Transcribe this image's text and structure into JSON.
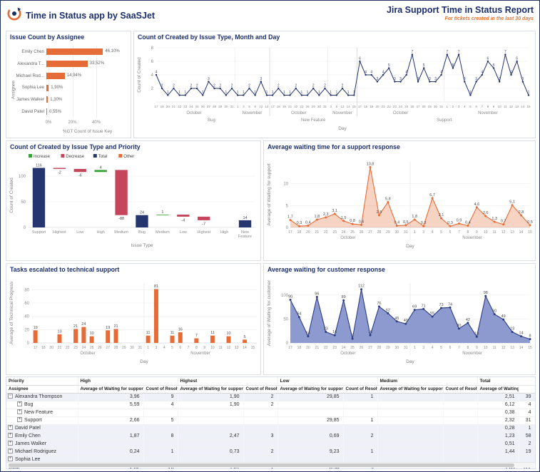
{
  "header": {
    "app_title": "Time in Status app by SaaSJet",
    "report_title": "Jira Support Time in Status Report",
    "report_subtitle": "For tickets created in the last 30 days"
  },
  "colors": {
    "navy": "#24356F",
    "orange": "#E66C37",
    "green": "#37A037",
    "red": "#C4455C",
    "area_fill_blue": "#8D9ACF",
    "area_line_blue": "#2C3C85",
    "title_text": "#1B2F6E"
  },
  "chart_data": [
    {
      "id": "assignee",
      "type": "bar",
      "orientation": "horizontal",
      "title": "Issue Count by Assignee",
      "categories": [
        "Emily Chen",
        "Alexandra T...",
        "Michael Rod...",
        "Sophia Lee",
        "James Walker",
        "David Patel"
      ],
      "values": [
        46.1,
        33.52,
        14.94,
        1.9,
        1.3,
        0.55
      ],
      "labels": [
        "46,10%",
        "33,52%",
        "14,94%",
        "1,90%",
        "1,30%",
        "0,55%"
      ],
      "xlabel": "%GT Count of Issue Key",
      "ylabel": "Assignee",
      "xticks": [
        0,
        20,
        40
      ],
      "xtick_labels": [
        "0%",
        "20%",
        "40%"
      ],
      "xlim": [
        0,
        65
      ]
    },
    {
      "id": "created",
      "type": "line",
      "title": "Count of Created by Issue Type, Month and Day",
      "xlabel": "Day",
      "ylabel": "Count of Created",
      "ylim": [
        0,
        8
      ],
      "yticks": [
        2,
        4,
        6,
        8
      ],
      "groups": [
        {
          "label": "Bug",
          "months": [
            {
              "label": "October",
              "days": [
                17,
                18,
                20,
                21,
                22,
                23,
                24,
                25,
                26,
                27,
                28,
                29,
                30,
                31
              ],
              "values": [
                4,
                2,
                1,
                2,
                1,
                1,
                2,
                2,
                1,
                3,
                2,
                2,
                1,
                2
              ]
            },
            {
              "label": "November",
              "days": [
                1,
                3,
                5,
                8,
                12,
                14
              ],
              "values": [
                1,
                1,
                2,
                1,
                3,
                1
              ]
            }
          ]
        },
        {
          "label": "New Feature",
          "months": [
            {
              "label": "October",
              "days": [
                17,
                18,
                19,
                21,
                22,
                23,
                26,
                29,
                30,
                31
              ],
              "values": [
                1,
                2,
                1,
                1,
                2,
                1,
                1,
                2,
                1,
                2
              ]
            },
            {
              "label": "November",
              "days": [
                3,
                6,
                13,
                14,
                15
              ],
              "values": [
                1,
                1,
                2,
                1,
                1
              ]
            }
          ]
        },
        {
          "label": "Support",
          "months": [
            {
              "label": "October",
              "days": [
                17,
                18,
                19,
                20,
                21,
                22,
                23,
                24,
                25,
                26,
                27,
                28,
                29,
                30,
                31
              ],
              "values": [
                6,
                4,
                4,
                3,
                4,
                5,
                3,
                3,
                4,
                7,
                3,
                5,
                3,
                3,
                4
              ]
            },
            {
              "label": "November",
              "days": [
                1,
                2,
                3,
                4,
                5,
                6,
                7,
                8,
                9,
                10,
                11,
                12,
                13,
                14,
                15
              ],
              "values": [
                7,
                5,
                7,
                3,
                1,
                3,
                4,
                6,
                5,
                3,
                7,
                4,
                6,
                3,
                1
              ]
            }
          ]
        }
      ]
    },
    {
      "id": "priority_waterfall",
      "type": "waterfall",
      "title": "Count of Created by Issue Type and Priority",
      "xlabel": "Issue Type",
      "ylabel": "Count of Created",
      "ylim": [
        0,
        125
      ],
      "yticks": [
        0,
        50,
        100
      ],
      "legend": [
        {
          "label": "Increase",
          "color_key": "green"
        },
        {
          "label": "Decrease",
          "color_key": "red"
        },
        {
          "label": "Total",
          "color_key": "navy"
        },
        {
          "label": "Other",
          "color_key": "orange"
        }
      ],
      "categories": [
        "Support",
        "Highest",
        "Low",
        "High",
        "Medium",
        "Bug",
        "Medium",
        "Low",
        "Highest",
        "High",
        "New Feature"
      ],
      "values": [
        116,
        -2,
        -6,
        4,
        -88,
        24,
        1,
        -4,
        -7,
        0,
        14
      ],
      "kinds": [
        "total",
        "decrease",
        "decrease",
        "increase",
        "decrease",
        "total",
        "increase",
        "decrease",
        "decrease",
        "other",
        "total"
      ],
      "labels": [
        "116",
        "-2",
        "-6",
        "4",
        "-88",
        "24",
        "1",
        "-4",
        "-7",
        "",
        "14"
      ]
    },
    {
      "id": "support_wait",
      "type": "area",
      "title": "Average waiting time for a support response",
      "xlabel": "Day",
      "ylabel": "Average of Waiting for support",
      "ylim": [
        0,
        15
      ],
      "yticks": [
        0,
        5,
        10
      ],
      "months": [
        {
          "label": "October",
          "days": [
            17,
            18,
            20,
            21,
            22,
            23,
            24,
            25,
            26,
            27,
            28,
            29,
            30,
            31
          ],
          "values": [
            1.7,
            0.3,
            0.4,
            1.8,
            2.3,
            3.1,
            1.5,
            0.8,
            0.6,
            13.8,
            2.8,
            5.8,
            0.4,
            0.5
          ]
        },
        {
          "label": "November",
          "days": [
            1,
            3,
            4,
            5,
            6,
            7,
            8,
            9,
            10,
            11,
            12,
            13,
            14,
            15
          ],
          "values": [
            1.8,
            0.3,
            6.7,
            2.1,
            0.3,
            0.9,
            0.4,
            4.6,
            2.6,
            1.3,
            0.7,
            5.1,
            2.8,
            0.5
          ]
        }
      ],
      "labels": [
        "1,7",
        "0,3",
        "0,4",
        "1,8",
        "2,3",
        "3,1",
        "1,5",
        "0,8",
        "0,6",
        "13,8",
        "2,8",
        "5,8",
        "0,4",
        "0,5",
        "1,8",
        "0,3",
        "6,7",
        "2,1",
        "0,3",
        "0,9",
        "0,4",
        "4,6",
        "2,6",
        "1,3",
        "0,7",
        "5,1",
        "2,8",
        "0,5"
      ]
    },
    {
      "id": "technical",
      "type": "column",
      "title": "Tasks escalated to technical support",
      "xlabel": "Day",
      "ylabel": "Average of Technical Progress",
      "ylim": [
        0,
        90
      ],
      "yticks": [
        0,
        20,
        40,
        60,
        80
      ],
      "months": [
        {
          "label": "October",
          "days": [
            17,
            18,
            20,
            21,
            22,
            23,
            24,
            25,
            26,
            27,
            28,
            29,
            30,
            31
          ],
          "values": [
            19,
            null,
            null,
            13,
            null,
            21,
            24,
            10,
            null,
            19,
            21,
            null,
            null,
            null
          ]
        },
        {
          "label": "November",
          "days": [
            1,
            3,
            4,
            5,
            6,
            7,
            8,
            9,
            10,
            11,
            12,
            13,
            14,
            15
          ],
          "values": [
            11,
            81,
            null,
            11,
            16,
            null,
            7,
            null,
            11,
            null,
            10,
            null,
            5,
            null
          ]
        }
      ]
    },
    {
      "id": "customer_wait",
      "type": "area",
      "title": "Average waiting for customer response",
      "xlabel": "Day",
      "ylabel": "Average of Waiting for customer",
      "ylim": [
        0,
        125
      ],
      "yticks": [
        0,
        50,
        100
      ],
      "months": [
        {
          "label": "October",
          "days": [
            17,
            18,
            20,
            21,
            22,
            23,
            24,
            25,
            26,
            27,
            28,
            29,
            30,
            31
          ],
          "values": [
            90,
            54,
            14,
            96,
            23,
            16,
            89,
            9,
            112,
            16,
            76,
            62,
            45,
            40
          ]
        },
        {
          "label": "November",
          "days": [
            1,
            3,
            4,
            5,
            6,
            7,
            8,
            9,
            10,
            11,
            12,
            13,
            14,
            15
          ],
          "values": [
            69,
            71,
            55,
            73,
            74,
            30,
            42,
            13,
            98,
            60,
            49,
            23,
            14,
            8
          ]
        }
      ],
      "labels": [
        "90",
        "54",
        "14",
        "96",
        "23",
        "16",
        "89",
        "9",
        "112",
        "16",
        "76",
        "62",
        "45",
        "40",
        "69",
        "71",
        "55",
        "73",
        "74",
        "30",
        "42",
        "13",
        "98",
        "60",
        "49",
        "23",
        "14",
        "8"
      ]
    }
  ],
  "matrix": {
    "corner_row1": "Priority",
    "corner_row2": "Assignee",
    "groups": [
      {
        "label": "High",
        "cols": [
          "Average of Waiting for support",
          "Count of Resolved"
        ]
      },
      {
        "label": "Highest",
        "cols": [
          "Average of Waiting for support",
          "Count of Resolved"
        ]
      },
      {
        "label": "Low",
        "cols": [
          "Average of Waiting for support",
          "Count of Resolved"
        ]
      },
      {
        "label": "Medium",
        "cols": [
          "Average of Waiting for support",
          "Count of Resolved"
        ]
      },
      {
        "label": "Total",
        "cols": [
          "Average of Waiting for support",
          ""
        ]
      }
    ],
    "rows": [
      {
        "name": "Alexandra Thompson",
        "level": 0,
        "expander": "minus",
        "cells": [
          "3,96",
          "9",
          "1,90",
          "2",
          "29,85",
          "1",
          "",
          "",
          "2,51",
          "39"
        ]
      },
      {
        "name": "Bug",
        "level": 1,
        "expander": "plus",
        "cells": [
          "5,59",
          "4",
          "1,90",
          "2",
          "",
          "",
          "",
          "",
          "6,12",
          "4"
        ]
      },
      {
        "name": "New Feature",
        "level": 1,
        "expander": "plus",
        "cells": [
          "",
          "",
          "",
          "",
          "",
          "",
          "",
          "",
          "0,38",
          "4"
        ]
      },
      {
        "name": "Support",
        "level": 1,
        "expander": "plus",
        "cells": [
          "2,66",
          "5",
          "",
          "",
          "29,85",
          "1",
          "",
          "",
          "2,32",
          "31"
        ]
      },
      {
        "name": "David Patel",
        "level": 0,
        "expander": "plus",
        "cells": [
          "",
          "",
          "",
          "",
          "",
          "",
          "",
          "",
          "0,28",
          "1"
        ]
      },
      {
        "name": "Emily Chen",
        "level": 0,
        "expander": "plus",
        "cells": [
          "1,87",
          "8",
          "2,47",
          "3",
          "0,69",
          "2",
          "",
          "",
          "1,23",
          "58"
        ]
      },
      {
        "name": "James Walker",
        "level": 0,
        "expander": "plus",
        "cells": [
          "",
          "",
          "",
          "",
          "",
          "",
          "",
          "",
          "0,51",
          "2"
        ]
      },
      {
        "name": "Michael Rodriguez",
        "level": 0,
        "expander": "plus",
        "cells": [
          "0,24",
          "1",
          "0,73",
          "2",
          "9,23",
          "1",
          "",
          "",
          "1,44",
          "19"
        ]
      },
      {
        "name": "Sophia Lee",
        "level": 0,
        "expander": "plus",
        "clipped": true,
        "cells": [
          "",
          "",
          "",
          "",
          "",
          "",
          "",
          "",
          "",
          ""
        ]
      }
    ],
    "total_row": {
      "name": "Total",
      "cells": [
        "2,62",
        "20",
        "1,81",
        "7",
        "8,56",
        "5",
        "",
        "",
        "1,65",
        "122"
      ]
    }
  }
}
